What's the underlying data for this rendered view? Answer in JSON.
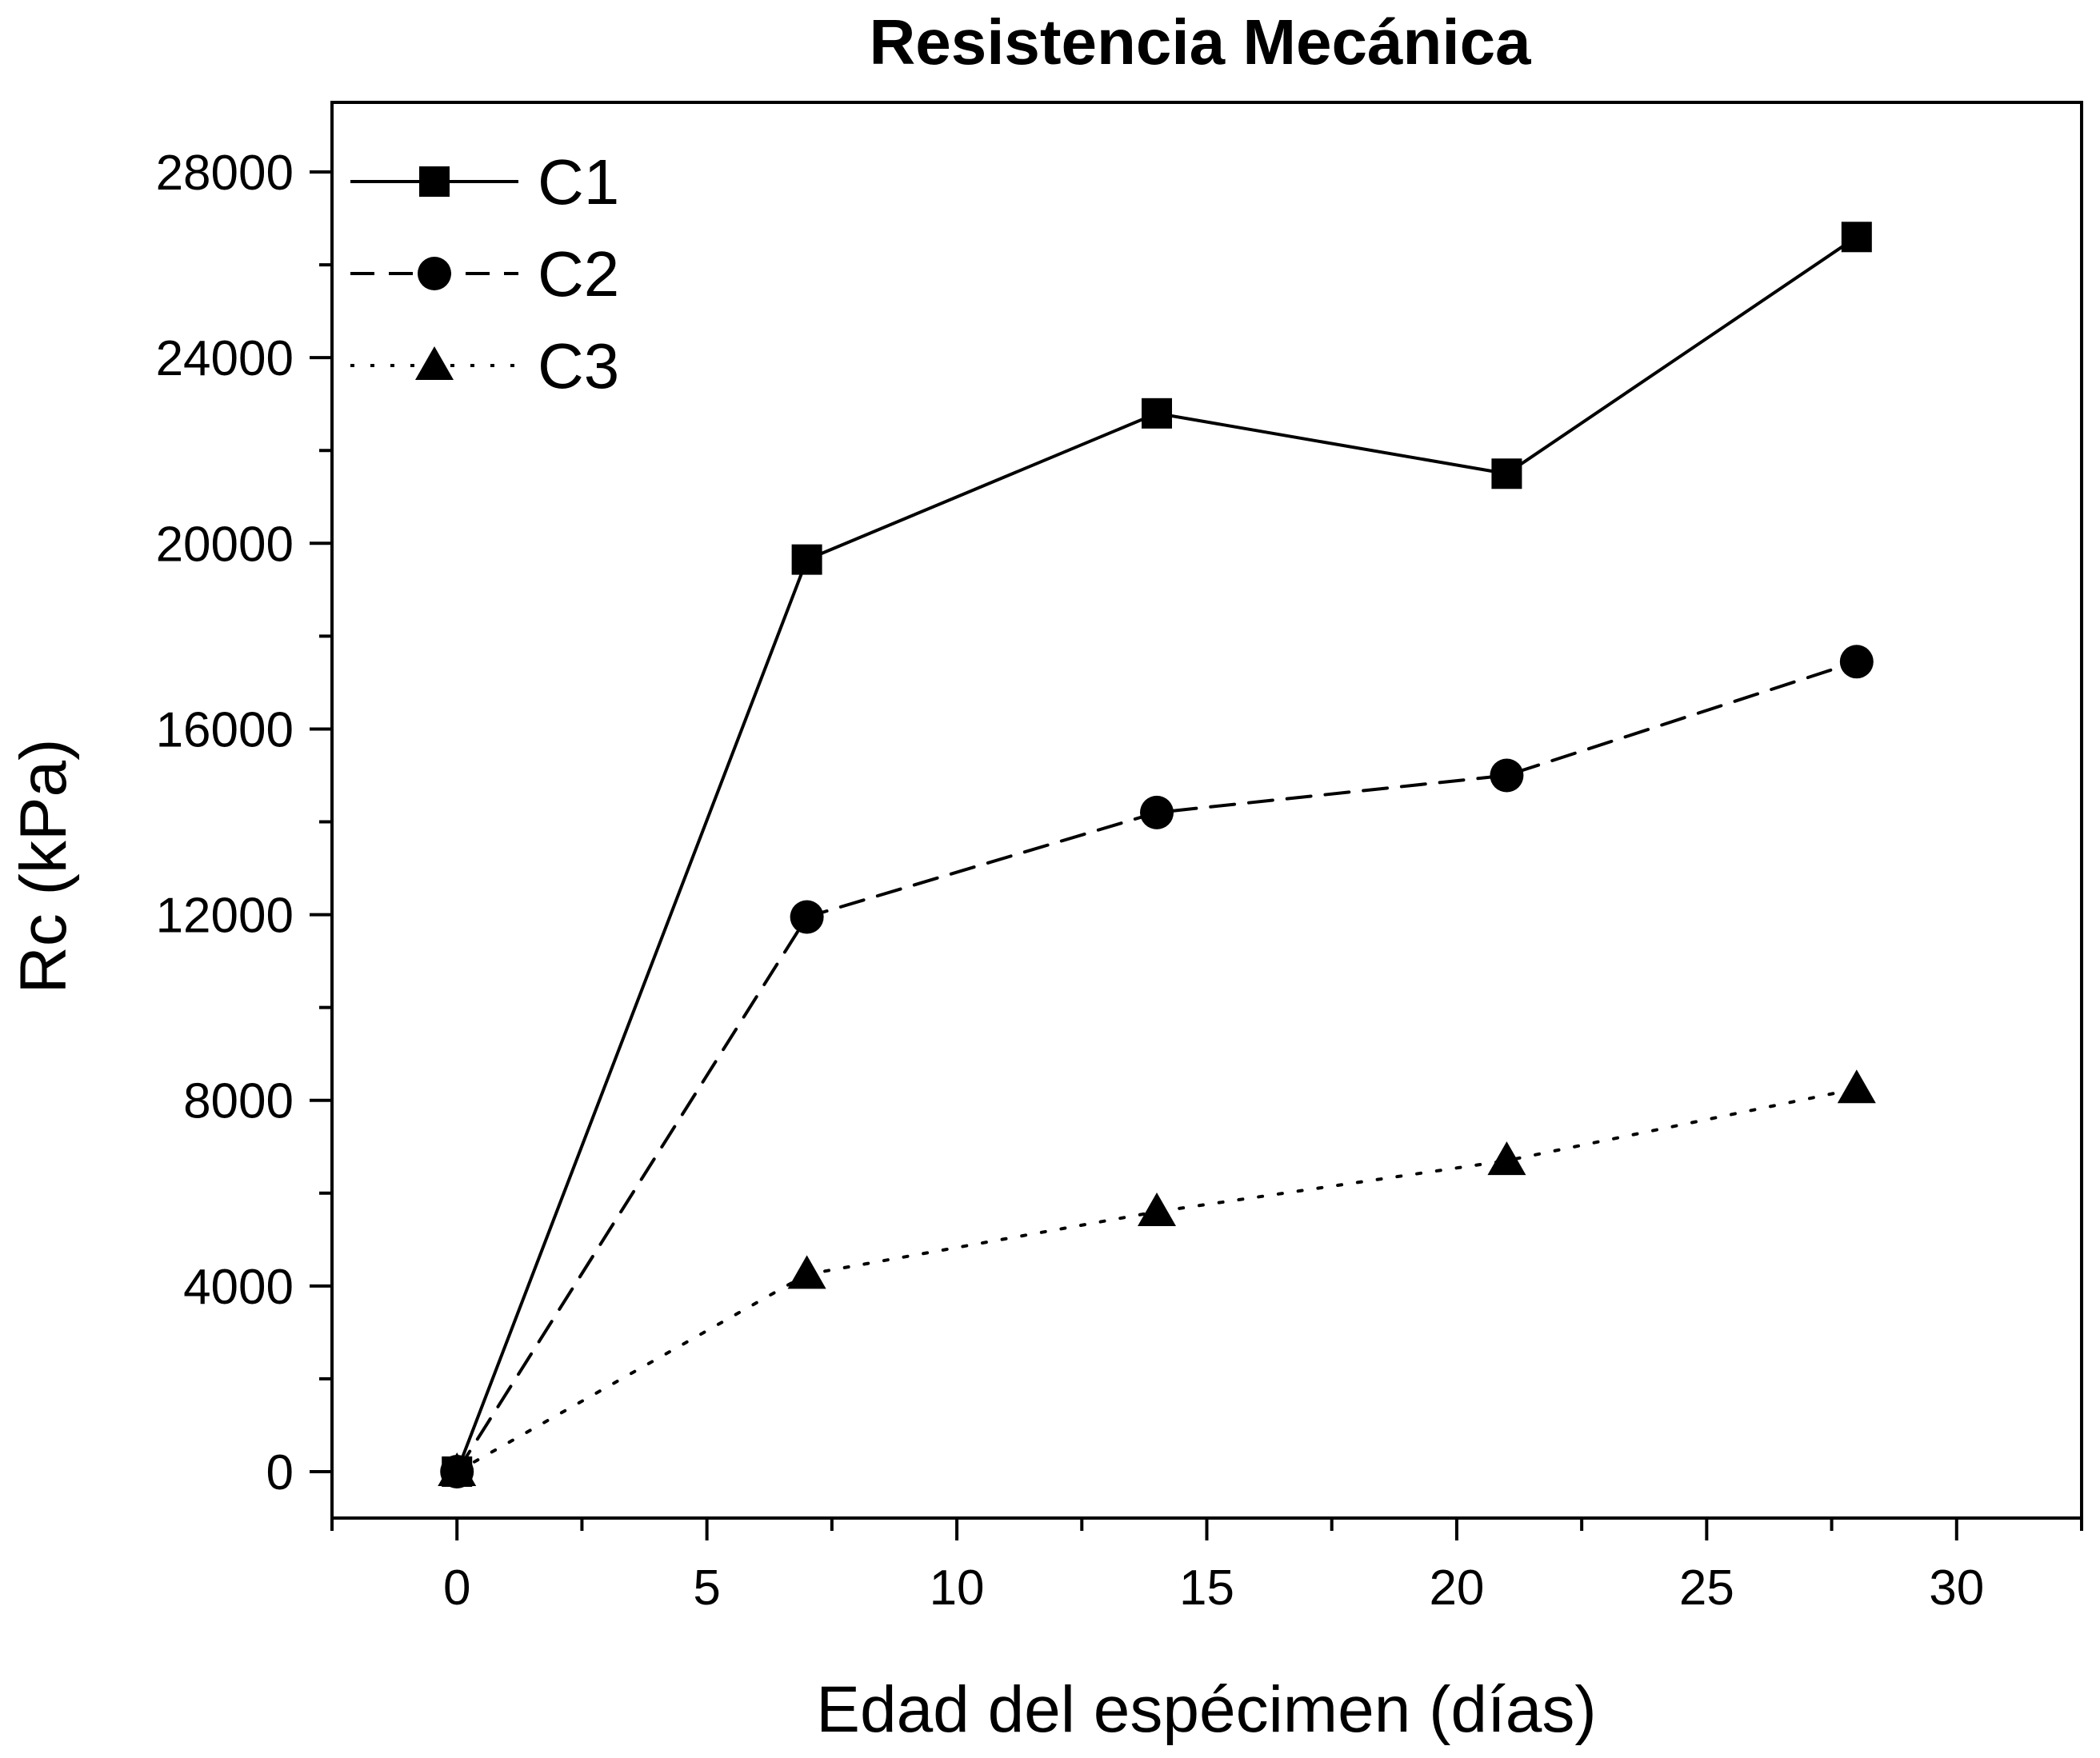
{
  "chart_data": {
    "type": "line",
    "title": "Resistencia Mecánica",
    "xlabel": "Edad del espécimen (días)",
    "ylabel": "Rc (kPa)",
    "xlim": [
      -2.5,
      32.5
    ],
    "ylim": [
      -1000,
      29500
    ],
    "x_ticks": [
      0,
      5,
      10,
      15,
      20,
      25,
      30
    ],
    "y_ticks": [
      0,
      4000,
      8000,
      12000,
      16000,
      20000,
      24000,
      28000
    ],
    "grid": false,
    "legend_position": "top-left",
    "series": [
      {
        "name": "C1",
        "line_style": "solid",
        "marker": "square",
        "x": [
          0,
          7,
          14,
          21,
          28
        ],
        "y": [
          0,
          19650,
          22800,
          21500,
          26600
        ]
      },
      {
        "name": "C2",
        "line_style": "dashed",
        "marker": "circle",
        "x": [
          0,
          7,
          14,
          21,
          28
        ],
        "y": [
          0,
          11950,
          14200,
          15000,
          17450
        ]
      },
      {
        "name": "C3",
        "line_style": "dotted",
        "marker": "triangle",
        "x": [
          0,
          7,
          14,
          21,
          28
        ],
        "y": [
          0,
          4250,
          5600,
          6700,
          8250
        ]
      }
    ],
    "colors": {
      "line": "#000000",
      "marker": "#000000",
      "background": "#ffffff"
    }
  }
}
